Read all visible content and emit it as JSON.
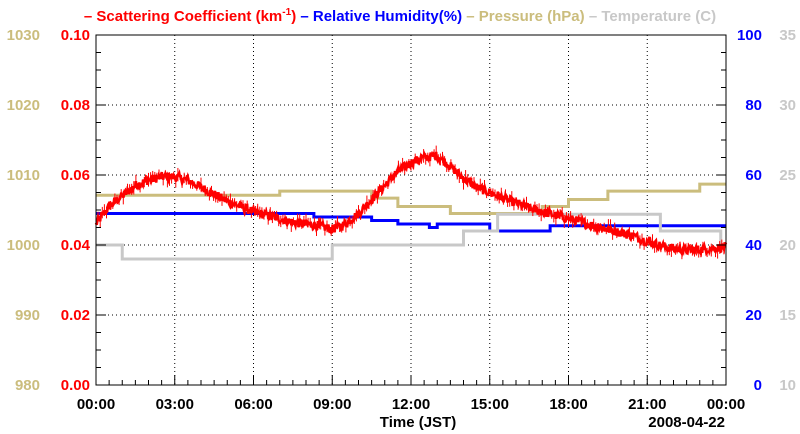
{
  "chart_data": {
    "type": "line",
    "date": "2008-04-22",
    "xlabel": "Time (JST)",
    "x_ticks": [
      "00:00",
      "03:00",
      "06:00",
      "09:00",
      "12:00",
      "15:00",
      "18:00",
      "21:00",
      "00:00"
    ],
    "xlim_hours": [
      0,
      24
    ],
    "legend": [
      {
        "name": "Scattering Coefficient (km",
        "superscript": "-1",
        "suffix": ")",
        "color": "#ff0000"
      },
      {
        "name": "Relative Humidity(%)",
        "color": "#0000ff"
      },
      {
        "name": "Pressure (hPa)",
        "color": "#cbbd7d"
      },
      {
        "name": "Temperature (C)",
        "color": "#c8c8c8"
      }
    ],
    "axes": {
      "scattering": {
        "side": "left-inner",
        "color": "#ff0000",
        "min": 0,
        "max": 0.1,
        "ticks": [
          "0.00",
          "0.02",
          "0.04",
          "0.06",
          "0.08",
          "0.10"
        ]
      },
      "pressure": {
        "side": "left-outer",
        "color": "#cbbd7d",
        "min": 980,
        "max": 1030,
        "ticks": [
          "980",
          "990",
          "1000",
          "1010",
          "1020",
          "1030"
        ]
      },
      "humidity": {
        "side": "right-inner",
        "color": "#0000ff",
        "min": 0,
        "max": 100,
        "ticks": [
          "0",
          "20",
          "40",
          "60",
          "80",
          "100"
        ]
      },
      "temperature": {
        "side": "right-outer",
        "color": "#c8c8c8",
        "min": 10,
        "max": 35,
        "ticks": [
          "10",
          "15",
          "20",
          "25",
          "30",
          "35"
        ]
      }
    },
    "series": [
      {
        "name": "Scattering Coefficient",
        "axis": "scattering",
        "color": "#ff0000",
        "noisy": true,
        "x": [
          0,
          0.5,
          1,
          1.5,
          2,
          2.5,
          3,
          3.5,
          4,
          4.5,
          5,
          5.5,
          6,
          6.5,
          7,
          7.5,
          8,
          8.5,
          9,
          9.5,
          10,
          10.5,
          11,
          11.5,
          12,
          12.5,
          13,
          13.5,
          14,
          14.5,
          15,
          15.5,
          16,
          16.5,
          17,
          17.5,
          18,
          18.5,
          19,
          19.5,
          20,
          20.5,
          21,
          21.5,
          22,
          22.5,
          23,
          23.5,
          24
        ],
        "values": [
          0.046,
          0.051,
          0.054,
          0.057,
          0.0585,
          0.0595,
          0.0595,
          0.0585,
          0.0565,
          0.0545,
          0.0525,
          0.051,
          0.0495,
          0.0485,
          0.0475,
          0.0465,
          0.046,
          0.0455,
          0.0445,
          0.046,
          0.049,
          0.053,
          0.057,
          0.061,
          0.0635,
          0.065,
          0.0655,
          0.0625,
          0.059,
          0.0565,
          0.055,
          0.0535,
          0.052,
          0.0505,
          0.0495,
          0.0485,
          0.0475,
          0.0465,
          0.0455,
          0.0445,
          0.0435,
          0.0425,
          0.041,
          0.0398,
          0.039,
          0.0385,
          0.0387,
          0.039,
          0.0395
        ]
      },
      {
        "name": "Relative Humidity",
        "axis": "humidity",
        "color": "#0000ff",
        "step": true,
        "x": [
          0,
          8.3,
          10.5,
          11.5,
          12.7,
          13,
          15,
          16.8,
          17.3,
          24
        ],
        "values": [
          49,
          48,
          47,
          46,
          45,
          46,
          44,
          44,
          45.5,
          45.5
        ]
      },
      {
        "name": "Pressure",
        "axis": "pressure",
        "color": "#cbbd7d",
        "step": true,
        "x": [
          0,
          6.5,
          7,
          10.5,
          11.5,
          13.5,
          15.5,
          17,
          18,
          19.5,
          23,
          24
        ],
        "values": [
          1007.1,
          1007.1,
          1007.7,
          1006.7,
          1005.5,
          1004.5,
          1004.5,
          1005.5,
          1006.5,
          1007.7,
          1008.7,
          1008.7
        ]
      },
      {
        "name": "Temperature",
        "axis": "temperature",
        "color": "#c8c8c8",
        "step": true,
        "x": [
          0,
          1,
          9,
          14,
          15.3,
          21.5,
          23.8,
          24
        ],
        "values": [
          20,
          19,
          20,
          21,
          22.2,
          21,
          20,
          20
        ]
      }
    ]
  }
}
